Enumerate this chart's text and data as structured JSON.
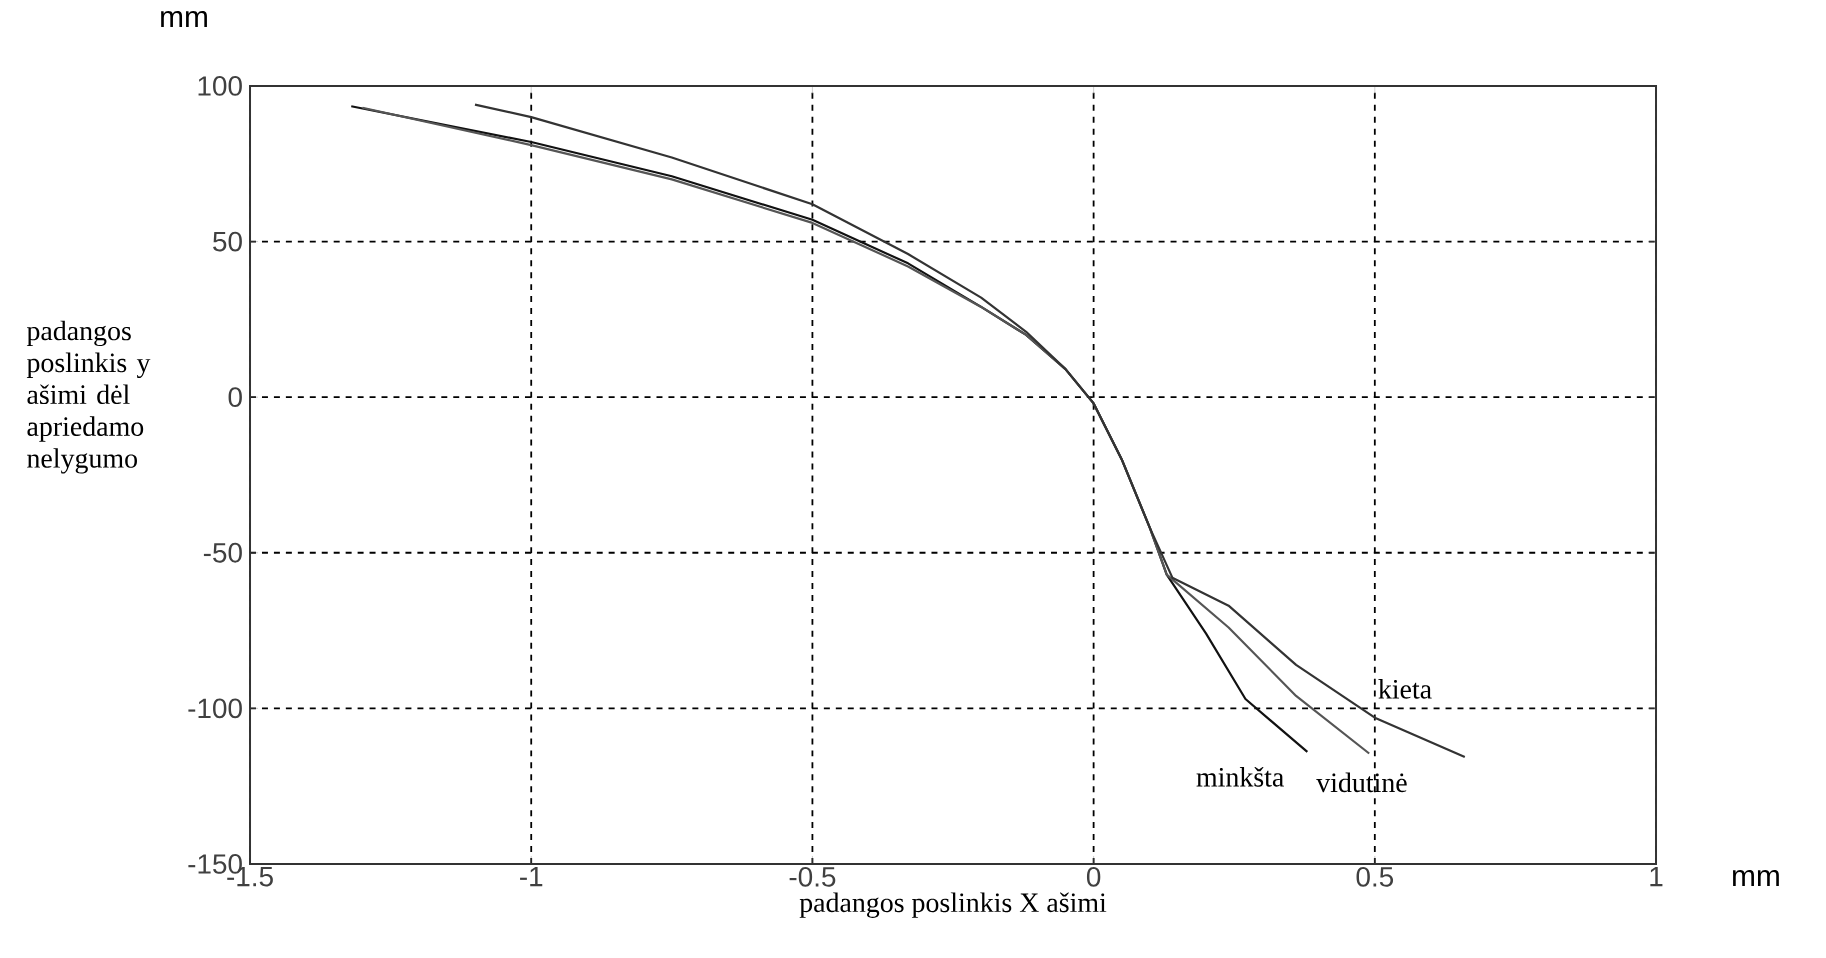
{
  "chart_data": {
    "type": "line",
    "xlabel": "padangos poslinkis X ašimi",
    "ylabel": "padangos poslinkis y ašimi dėl apriedamo nelygumo",
    "annotations": [
      "mm",
      "mm"
    ],
    "xlim": [
      -1.5,
      1
    ],
    "xticks": [
      -1.5,
      -1,
      -0.5,
      0,
      0.5,
      1
    ],
    "ylim": [
      -150,
      100
    ],
    "yticks": [
      -150,
      -100,
      -50,
      0,
      50,
      100
    ],
    "grid": true,
    "legend": false,
    "marker": "none",
    "line_style": "solid",
    "series": [
      {
        "name": "minkšta",
        "color": "#111111",
        "x": [
          -1.32,
          -1,
          -0.75,
          -0.5,
          -0.33,
          -0.2,
          -0.12,
          -0.05,
          0,
          0.05,
          0.1,
          0.13,
          0.2,
          0.27,
          0.38
        ],
        "values": [
          93.5,
          82,
          71,
          57,
          43,
          29,
          20,
          9,
          -2,
          -20,
          -42,
          -57,
          -76,
          -97,
          -114
        ]
      },
      {
        "name": "vidutinė",
        "color": "#555555",
        "x": [
          -1.3,
          -1,
          -0.75,
          -0.5,
          -0.33,
          -0.2,
          -0.12,
          -0.05,
          0,
          0.05,
          0.1,
          0.13,
          0.24,
          0.36,
          0.49
        ],
        "values": [
          93,
          81,
          70,
          56,
          42,
          29,
          20,
          9,
          -2,
          -20,
          -42,
          -57,
          -74,
          -96,
          -114.5
        ]
      },
      {
        "name": "kieta",
        "color": "#333333",
        "x": [
          -1.1,
          -1,
          -0.75,
          -0.5,
          -0.33,
          -0.2,
          -0.12,
          -0.05,
          0,
          0.05,
          0.1,
          0.14,
          0.24,
          0.36,
          0.5,
          0.66
        ],
        "values": [
          94,
          90,
          77,
          62,
          46,
          32,
          21,
          9,
          -2,
          -20,
          -42,
          -58,
          -67,
          -86,
          -103,
          -115.6
        ]
      }
    ]
  }
}
